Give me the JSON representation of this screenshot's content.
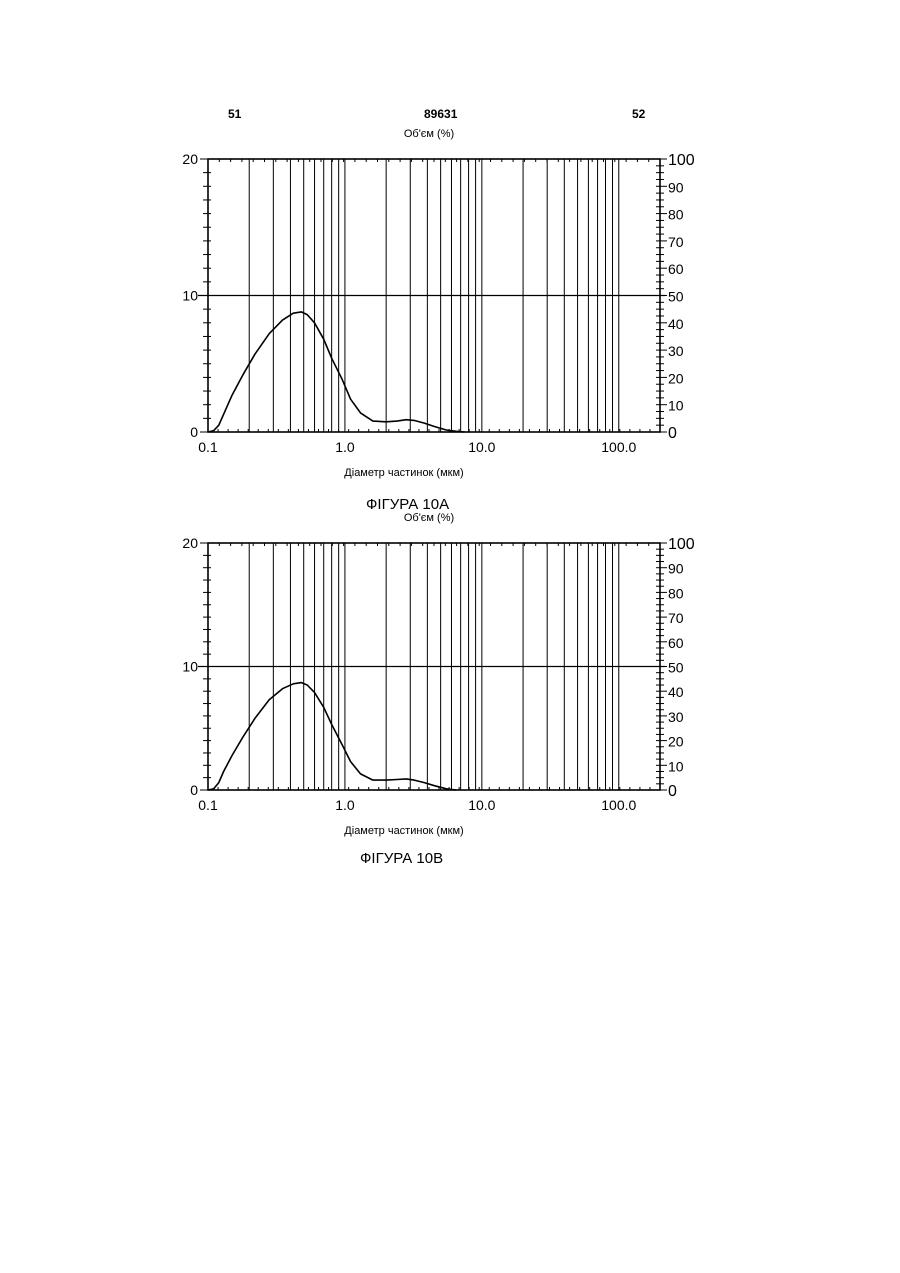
{
  "page_header": {
    "left": "51",
    "center": "89631",
    "right": "52"
  },
  "chart_data": [
    {
      "type": "line",
      "caption": "ФІГУРА 10А",
      "title": "Об'єм (%)",
      "xlabel": "Діаметр частинок (мкм)",
      "x_scale": "log",
      "xlim": [
        0.1,
        200
      ],
      "x_ticks": [
        0.1,
        1.0,
        10.0,
        100.0
      ],
      "x_tick_labels": [
        "0.1",
        "1.0",
        "10.0",
        "100.0"
      ],
      "ylim_left": [
        0,
        20
      ],
      "y_left_ticks": [
        0,
        10,
        20
      ],
      "ylim_right": [
        0,
        100
      ],
      "y_right_ticks": [
        0,
        10,
        20,
        30,
        40,
        50,
        60,
        70,
        80,
        90,
        100
      ],
      "grid": true,
      "series": [
        {
          "x": [
            0.1,
            0.11,
            0.12,
            0.13,
            0.15,
            0.18,
            0.22,
            0.28,
            0.35,
            0.42,
            0.48,
            0.53,
            0.6,
            0.7,
            0.8,
            0.95,
            1.1,
            1.3,
            1.6,
            2.0,
            2.4,
            2.8,
            3.2,
            3.8,
            4.5,
            5.5,
            6.5,
            7.5
          ],
          "y": [
            0.0,
            0.1,
            0.5,
            1.3,
            2.7,
            4.2,
            5.7,
            7.2,
            8.2,
            8.7,
            8.8,
            8.6,
            8.0,
            6.8,
            5.4,
            3.9,
            2.4,
            1.4,
            0.8,
            0.75,
            0.8,
            0.9,
            0.85,
            0.65,
            0.4,
            0.15,
            0.05,
            0.0
          ]
        }
      ]
    },
    {
      "type": "line",
      "caption": "ФІГУРА 10В",
      "title": "Об'єм (%)",
      "xlabel": "Діаметр частинок (мкм)",
      "x_scale": "log",
      "xlim": [
        0.1,
        200
      ],
      "x_ticks": [
        0.1,
        1.0,
        10.0,
        100.0
      ],
      "x_tick_labels": [
        "0.1",
        "1.0",
        "10.0",
        "100.0"
      ],
      "ylim_left": [
        0,
        20
      ],
      "y_left_ticks": [
        0,
        10,
        20
      ],
      "ylim_right": [
        0,
        100
      ],
      "y_right_ticks": [
        0,
        10,
        20,
        30,
        40,
        50,
        60,
        70,
        80,
        90,
        100
      ],
      "grid": true,
      "series": [
        {
          "x": [
            0.1,
            0.11,
            0.12,
            0.13,
            0.15,
            0.18,
            0.22,
            0.28,
            0.35,
            0.42,
            0.48,
            0.53,
            0.6,
            0.7,
            0.8,
            0.95,
            1.1,
            1.3,
            1.6,
            2.0,
            2.4,
            2.8,
            3.2,
            3.8,
            4.5,
            5.5,
            6.5
          ],
          "y": [
            0.0,
            0.1,
            0.6,
            1.5,
            2.8,
            4.3,
            5.8,
            7.3,
            8.2,
            8.6,
            8.7,
            8.5,
            7.9,
            6.7,
            5.3,
            3.7,
            2.3,
            1.3,
            0.8,
            0.8,
            0.85,
            0.9,
            0.8,
            0.6,
            0.35,
            0.1,
            0.0
          ]
        }
      ]
    }
  ]
}
